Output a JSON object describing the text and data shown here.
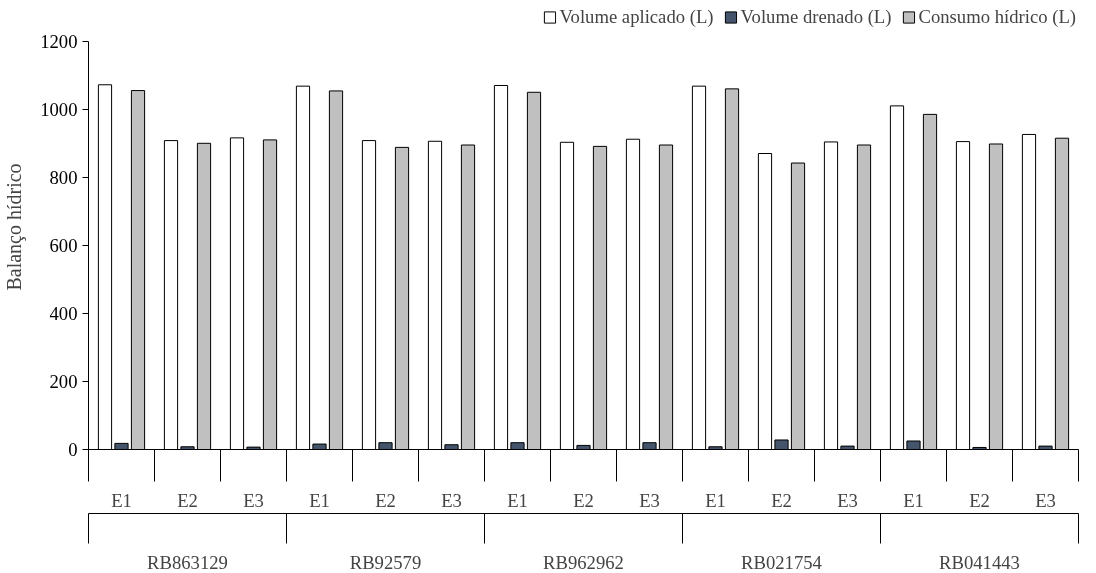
{
  "chart_data": {
    "type": "bar",
    "ylabel": "Balanço hídrico",
    "categories": [
      "E1",
      "E2",
      "E3",
      "E1",
      "E2",
      "E3",
      "E1",
      "E2",
      "E3",
      "E1",
      "E2",
      "E3",
      "E1",
      "E2",
      "E3"
    ],
    "annotations": [
      "RB863129",
      "RB92579",
      "RB962962",
      "RB021754",
      "RB041443"
    ],
    "series": [
      {
        "name": "Volume aplicado (L)",
        "color": "#ffffff",
        "values": [
          1072,
          908,
          916,
          1068,
          908,
          906,
          1070,
          903,
          912,
          1068,
          870,
          904,
          1010,
          905,
          926
        ]
      },
      {
        "name": "Volume drenado (L)",
        "color": "#44546a",
        "values": [
          18,
          8,
          7,
          16,
          20,
          14,
          20,
          12,
          20,
          8,
          28,
          10,
          25,
          6,
          10
        ]
      },
      {
        "name": "Consumo hídrico (L)",
        "color": "#c0c0c0",
        "values": [
          1055,
          900,
          910,
          1054,
          888,
          895,
          1050,
          891,
          895,
          1060,
          842,
          895,
          985,
          898,
          915
        ]
      }
    ],
    "ylim": [
      0,
      1200
    ],
    "yticks": [
      0,
      200,
      400,
      600,
      800,
      1000,
      1200
    ],
    "grid": false,
    "legend": "top"
  }
}
